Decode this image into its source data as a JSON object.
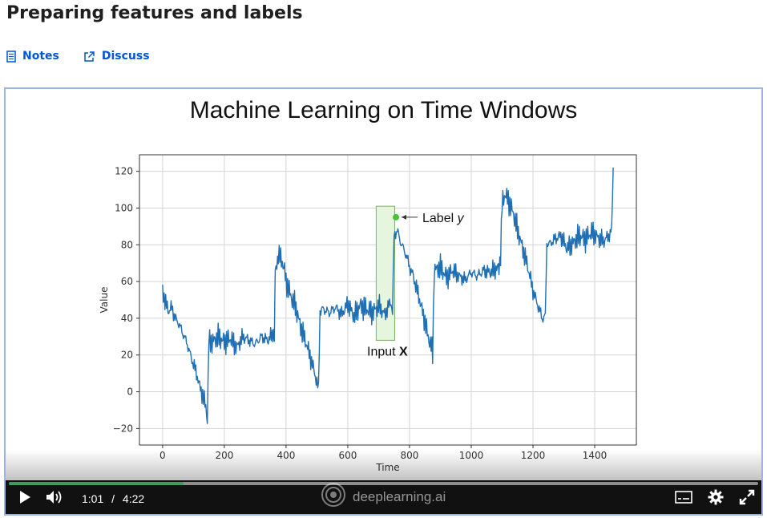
{
  "page": {
    "title": "Preparing features and labels"
  },
  "links": [
    {
      "label": "Notes",
      "icon": "notes-icon"
    },
    {
      "label": "Discuss",
      "icon": "external-link-icon"
    }
  ],
  "video": {
    "slide_title": "Machine Learning on Time Windows",
    "current_time": "1:01",
    "separator": "/",
    "duration": "4:22",
    "progress": 0.233,
    "brand": "deeplearning.ai",
    "accent_color": "#3a9d5d"
  },
  "chart_data": {
    "type": "line",
    "xlabel": "Time",
    "ylabel": "Value",
    "xlim": [
      -75,
      1535
    ],
    "ylim": [
      -29,
      129
    ],
    "xticks": [
      0,
      200,
      400,
      600,
      800,
      1000,
      1200,
      1400
    ],
    "yticks": [
      -20,
      0,
      20,
      40,
      60,
      80,
      100,
      120
    ],
    "grid": true,
    "line_color": "#1f6fb2",
    "series": [
      {
        "x": [
          0,
          10,
          20,
          30,
          40,
          50,
          60,
          70,
          80,
          90,
          100,
          110,
          120,
          130,
          140,
          145,
          150,
          160,
          180,
          200,
          220,
          240,
          260,
          280,
          300,
          320,
          340,
          355,
          362,
          365,
          375,
          385,
          395,
          400,
          410,
          420,
          430,
          440,
          450,
          460,
          470,
          480,
          490,
          500,
          505,
          510,
          520,
          540,
          560,
          580,
          600,
          620,
          640,
          660,
          680,
          700,
          720,
          730,
          740,
          745,
          750,
          760,
          770,
          780,
          790,
          800,
          810,
          820,
          830,
          840,
          850,
          860,
          870,
          875,
          880,
          900,
          920,
          940,
          960,
          980,
          1000,
          1020,
          1040,
          1060,
          1080,
          1090,
          1095,
          1100,
          1110,
          1120,
          1130,
          1140,
          1150,
          1160,
          1170,
          1180,
          1190,
          1200,
          1210,
          1220,
          1230,
          1240,
          1245,
          1250,
          1270,
          1290,
          1310,
          1330,
          1350,
          1370,
          1390,
          1410,
          1430,
          1450,
          1455,
          1460
        ],
        "y": [
          55,
          48,
          44,
          46,
          40,
          38,
          34,
          30,
          26,
          20,
          15,
          10,
          3,
          -2,
          -8,
          -15,
          28,
          27,
          30,
          27,
          29,
          24,
          30,
          28,
          26,
          30,
          28,
          31,
          30,
          64,
          75,
          72,
          66,
          60,
          55,
          50,
          47,
          40,
          34,
          29,
          24,
          18,
          12,
          5,
          1,
          44,
          45,
          43,
          46,
          42,
          48,
          41,
          47,
          45,
          43,
          47,
          42,
          46,
          49,
          43,
          85,
          88,
          82,
          78,
          74,
          68,
          64,
          58,
          52,
          45,
          38,
          30,
          25,
          21,
          66,
          68,
          62,
          66,
          63,
          61,
          65,
          63,
          66,
          65,
          67,
          67,
          75,
          102,
          108,
          104,
          100,
          95,
          88,
          82,
          76,
          70,
          63,
          55,
          50,
          45,
          40,
          41,
          82,
          80,
          83,
          85,
          78,
          81,
          85,
          83,
          87,
          84,
          82,
          86,
          88,
          122
        ]
      }
    ],
    "annotations": [
      {
        "text": "Label ",
        "italic_text": "y",
        "x": 752,
        "y": 95
      },
      {
        "text": "Input ",
        "bold_text": "X",
        "x": 675,
        "y": 22
      }
    ],
    "window_box": {
      "x_start": 692,
      "x_end": 752,
      "y_start": 28,
      "y_end": 101,
      "fill": "#e6f5dd",
      "stroke": "#7fae6a"
    },
    "label_point": {
      "x": 756,
      "y": 95,
      "color": "#46c336"
    }
  }
}
